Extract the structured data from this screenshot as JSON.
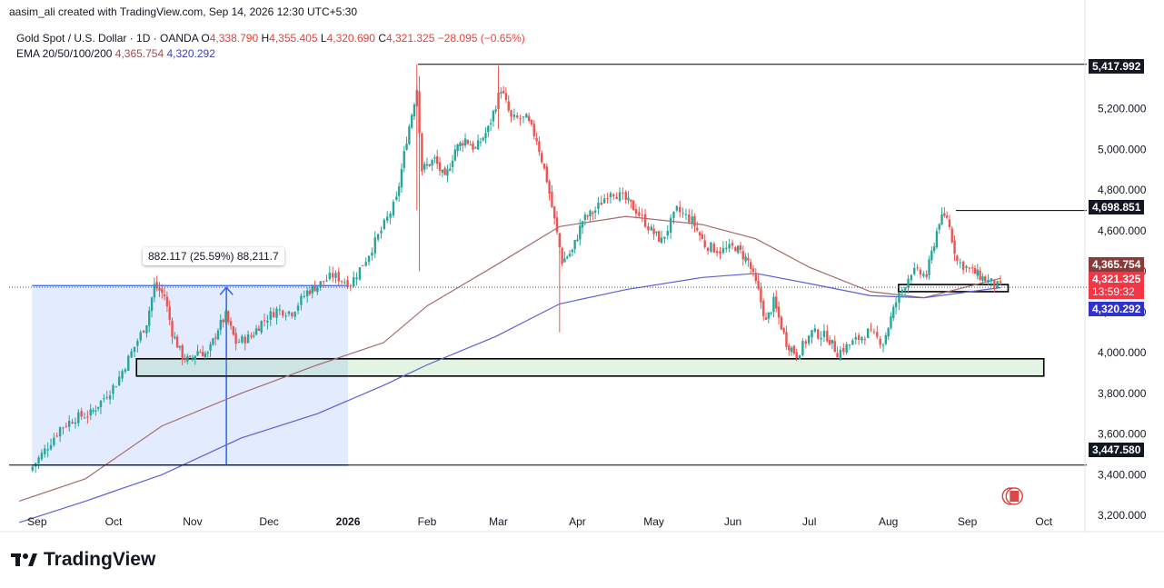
{
  "header": {
    "publisher": "aasim_ali created with TradingView.com, Sep 14, 2026 12:30 UTC+5:30"
  },
  "legend": {
    "symbol": "Gold Spot / U.S. Dollar · 1D · OANDA",
    "open_label": "O",
    "open": "4,338.790",
    "high_label": "H",
    "high": "4,355.405",
    "low_label": "L",
    "low": "4,320.690",
    "close_label": "C",
    "close": "4,321.325",
    "change": "−28.095 (−0.65%)",
    "ema_label": "EMA 20/50/100/200",
    "ema_val1": "4,365.754",
    "ema_val2": "4,320.292"
  },
  "price_tags": {
    "top": "5,417.992",
    "level_4698": "4,698.851",
    "ema_brown": "4,365.754",
    "last_price": "4,321.325",
    "countdown": "13:59:32",
    "ema_blue": "4,320.292",
    "bottom": "3,447.580"
  },
  "measure_label": "882.117 (25.59%) 88,211.7",
  "brand": "TradingView",
  "colors": {
    "up": "#26a69a",
    "down": "#ef5350",
    "ema_brown": "#a86a6a",
    "ema_blue": "#5b5fd6",
    "measure": "#2962ff"
  },
  "chart_data": {
    "type": "candlestick",
    "title": "Gold Spot / U.S. Dollar · 1D · OANDA",
    "y_ticks": [
      "3,200.000",
      "3,400.000",
      "3,600.000",
      "3,800.000",
      "4,000.000",
      "4,200.000",
      "4,400.000",
      "4,600.000",
      "4,800.000",
      "5,000.000",
      "5,200.000"
    ],
    "y_tick_values": [
      3200,
      3400,
      3600,
      3800,
      4000,
      4200,
      4400,
      4600,
      4800,
      5000,
      5200
    ],
    "ylim": [
      3120,
      5600
    ],
    "x_ticks": [
      "Sep",
      "Oct",
      "Nov",
      "Dec",
      "2026",
      "Feb",
      "Mar",
      "Apr",
      "May",
      "Jun",
      "Jul",
      "Aug",
      "Sep",
      "Oct"
    ],
    "close_path": [
      [
        "2025-08-29",
        3420
      ],
      [
        "2025-09-04",
        3520
      ],
      [
        "2025-09-10",
        3630
      ],
      [
        "2025-09-16",
        3680
      ],
      [
        "2025-09-22",
        3700
      ],
      [
        "2025-09-26",
        3760
      ],
      [
        "2025-10-02",
        3850
      ],
      [
        "2025-10-08",
        4000
      ],
      [
        "2025-10-14",
        4150
      ],
      [
        "2025-10-17",
        4330
      ],
      [
        "2025-10-21",
        4280
      ],
      [
        "2025-10-24",
        4100
      ],
      [
        "2025-10-28",
        3980
      ],
      [
        "2025-10-31",
        3960
      ],
      [
        "2025-11-03",
        4010
      ],
      [
        "2025-11-07",
        3990
      ],
      [
        "2025-11-11",
        4120
      ],
      [
        "2025-11-14",
        4180
      ],
      [
        "2025-11-18",
        4050
      ],
      [
        "2025-11-24",
        4080
      ],
      [
        "2025-11-28",
        4150
      ],
      [
        "2025-12-04",
        4210
      ],
      [
        "2025-12-10",
        4200
      ],
      [
        "2025-12-16",
        4300
      ],
      [
        "2025-12-20",
        4330
      ],
      [
        "2025-12-26",
        4380
      ],
      [
        "2026-01-02",
        4340
      ],
      [
        "2026-01-08",
        4460
      ],
      [
        "2026-01-14",
        4600
      ],
      [
        "2026-01-20",
        4750
      ],
      [
        "2026-01-24",
        5050
      ],
      [
        "2026-01-28",
        5300
      ],
      [
        "2026-01-30",
        4900
      ],
      [
        "2026-02-04",
        4950
      ],
      [
        "2026-02-08",
        4850
      ],
      [
        "2026-02-12",
        5000
      ],
      [
        "2026-02-16",
        5050
      ],
      [
        "2026-02-20",
        5000
      ],
      [
        "2026-02-25",
        5100
      ],
      [
        "2026-03-02",
        5300
      ],
      [
        "2026-03-06",
        5150
      ],
      [
        "2026-03-12",
        5150
      ],
      [
        "2026-03-16",
        5050
      ],
      [
        "2026-03-20",
        4850
      ],
      [
        "2026-03-23",
        4650
      ],
      [
        "2026-03-26",
        4450
      ],
      [
        "2026-03-30",
        4500
      ],
      [
        "2026-04-03",
        4650
      ],
      [
        "2026-04-08",
        4700
      ],
      [
        "2026-04-14",
        4800
      ],
      [
        "2026-04-20",
        4750
      ],
      [
        "2026-04-24",
        4700
      ],
      [
        "2026-04-30",
        4600
      ],
      [
        "2026-05-04",
        4550
      ],
      [
        "2026-05-10",
        4700
      ],
      [
        "2026-05-16",
        4650
      ],
      [
        "2026-05-21",
        4530
      ],
      [
        "2026-05-27",
        4500
      ],
      [
        "2026-06-02",
        4520
      ],
      [
        "2026-06-07",
        4450
      ],
      [
        "2026-06-11",
        4300
      ],
      [
        "2026-06-14",
        4150
      ],
      [
        "2026-06-17",
        4250
      ],
      [
        "2026-06-22",
        4050
      ],
      [
        "2026-06-26",
        3990
      ],
      [
        "2026-07-02",
        4100
      ],
      [
        "2026-07-08",
        4080
      ],
      [
        "2026-07-12",
        4000
      ],
      [
        "2026-07-18",
        4050
      ],
      [
        "2026-07-24",
        4100
      ],
      [
        "2026-07-30",
        4050
      ],
      [
        "2026-08-04",
        4250
      ],
      [
        "2026-08-10",
        4400
      ],
      [
        "2026-08-16",
        4380
      ],
      [
        "2026-08-21",
        4650
      ],
      [
        "2026-08-24",
        4670
      ],
      [
        "2026-08-28",
        4450
      ],
      [
        "2026-09-03",
        4400
      ],
      [
        "2026-09-08",
        4360
      ],
      [
        "2026-09-14",
        4321
      ]
    ],
    "series": [
      {
        "name": "EMA 100",
        "values": [
          [
            "2025-08-25",
            3270
          ],
          [
            "2025-09-20",
            3380
          ],
          [
            "2025-10-20",
            3640
          ],
          [
            "2025-11-20",
            3800
          ],
          [
            "2025-12-20",
            3940
          ],
          [
            "2026-01-15",
            4050
          ],
          [
            "2026-02-01",
            4230
          ],
          [
            "2026-02-28",
            4430
          ],
          [
            "2026-03-25",
            4620
          ],
          [
            "2026-04-20",
            4670
          ],
          [
            "2026-05-20",
            4630
          ],
          [
            "2026-06-10",
            4560
          ],
          [
            "2026-07-01",
            4420
          ],
          [
            "2026-07-25",
            4300
          ],
          [
            "2026-08-15",
            4270
          ],
          [
            "2026-09-14",
            4366
          ]
        ]
      },
      {
        "name": "EMA 200",
        "values": [
          [
            "2025-08-25",
            3165
          ],
          [
            "2025-09-20",
            3270
          ],
          [
            "2025-10-20",
            3400
          ],
          [
            "2025-11-20",
            3580
          ],
          [
            "2025-12-20",
            3700
          ],
          [
            "2026-01-15",
            3840
          ],
          [
            "2026-02-01",
            3940
          ],
          [
            "2026-02-28",
            4080
          ],
          [
            "2026-03-25",
            4240
          ],
          [
            "2026-04-20",
            4310
          ],
          [
            "2026-05-20",
            4370
          ],
          [
            "2026-06-10",
            4390
          ],
          [
            "2026-07-01",
            4340
          ],
          [
            "2026-07-25",
            4280
          ],
          [
            "2026-08-15",
            4270
          ],
          [
            "2026-09-14",
            4320
          ]
        ]
      }
    ],
    "horizontal_levels": [
      5417.992,
      4698.851,
      3447.58
    ],
    "measure_range": {
      "from": "2025-08-30",
      "to": "2026-01-01",
      "low": 3447.58,
      "high": 4329.697
    },
    "zones": [
      {
        "from": "2025-10-10",
        "to": "2026-10-01",
        "low": 3885,
        "high": 3970
      },
      {
        "from": "2026-08-05",
        "to": "2026-09-17",
        "low": 4300,
        "high": 4335
      }
    ],
    "grid": false
  }
}
